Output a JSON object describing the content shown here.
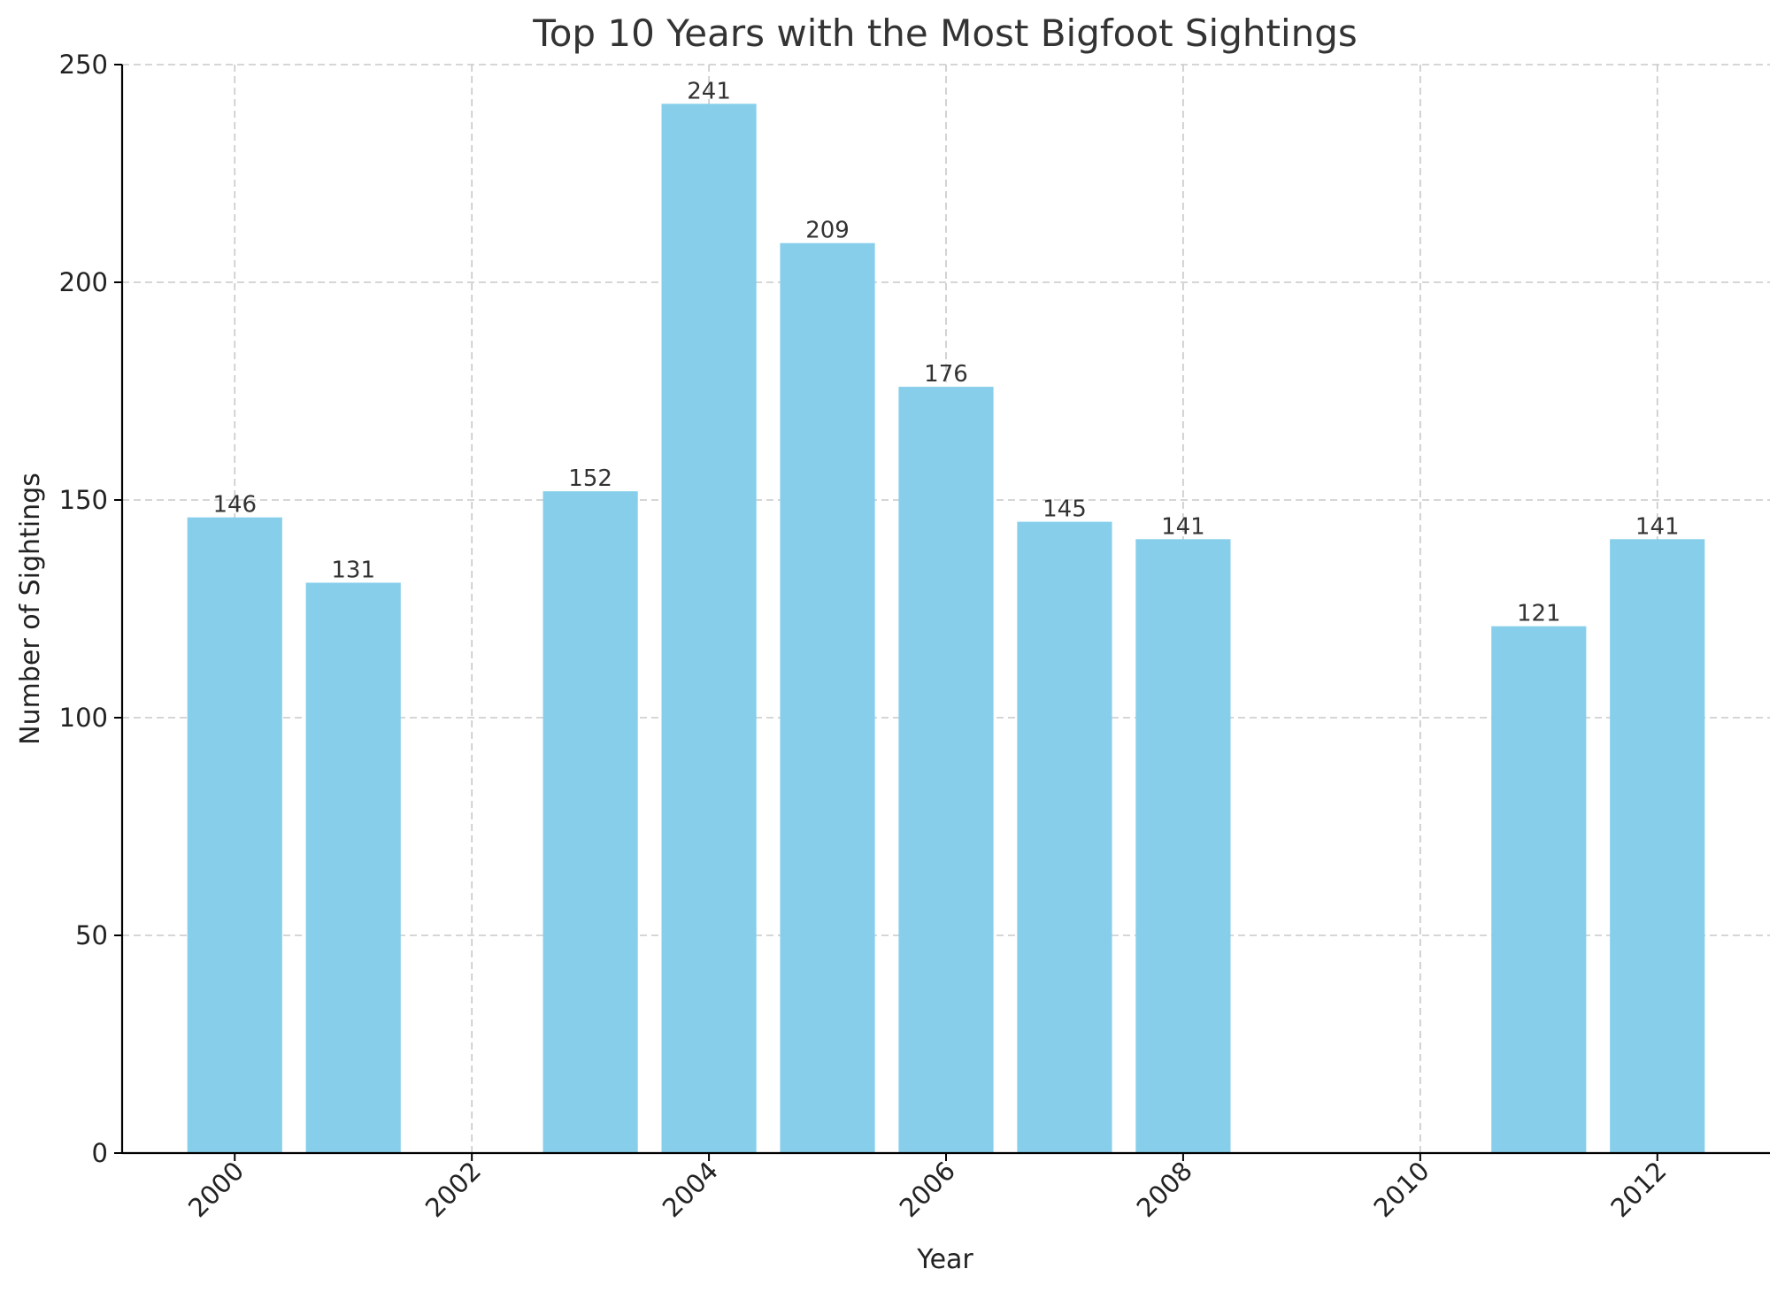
{
  "chart_data": {
    "type": "bar",
    "title": "Top 10 Years with the Most Bigfoot Sightings",
    "xlabel": "Year",
    "ylabel": "Number of Sightings",
    "x": [
      2000,
      2001,
      2003,
      2004,
      2005,
      2006,
      2007,
      2008,
      2011,
      2012
    ],
    "values": [
      146,
      131,
      152,
      241,
      209,
      176,
      145,
      141,
      121,
      141
    ],
    "bar_color": "#87CEEB",
    "xlim": [
      1999.05,
      2012.95
    ],
    "ylim": [
      0,
      250
    ],
    "xticks": [
      2000,
      2002,
      2004,
      2006,
      2008,
      2010,
      2012
    ],
    "xtick_labels": [
      "2000",
      "2002",
      "2004",
      "2006",
      "2008",
      "2010",
      "2012"
    ],
    "yticks": [
      0,
      50,
      100,
      150,
      200,
      250
    ],
    "ytick_labels": [
      "0",
      "50",
      "100",
      "150",
      "200",
      "250"
    ],
    "grid": true
  }
}
